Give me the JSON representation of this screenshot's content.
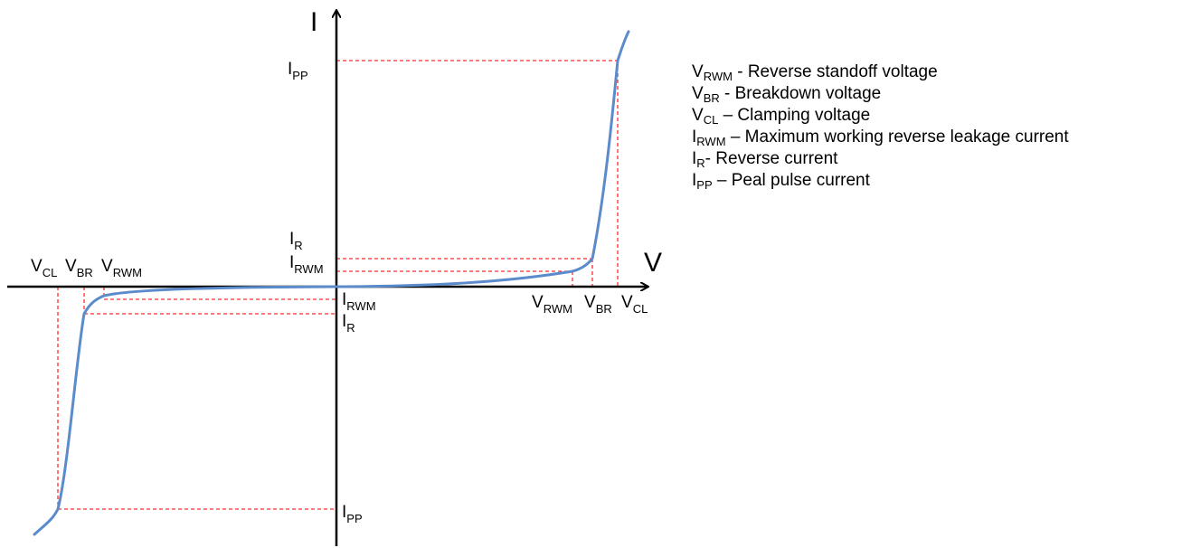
{
  "colors": {
    "axis": "#000000",
    "curve": "#5B8BCB",
    "guide": "#FF2A2A",
    "background": "#FFFFFF"
  },
  "axes": {
    "y_name": "I",
    "x_name": "V"
  },
  "labels": {
    "ipp_top": {
      "base": "I",
      "sub": "PP"
    },
    "ir_top": {
      "base": "I",
      "sub": "R"
    },
    "irwm_top": {
      "base": "I",
      "sub": "RWM"
    },
    "irwm_bot": {
      "base": "I",
      "sub": "RWM"
    },
    "ir_bot": {
      "base": "I",
      "sub": "R"
    },
    "ipp_bot": {
      "base": "I",
      "sub": "PP"
    },
    "vcl_left": {
      "base": "V",
      "sub": "CL"
    },
    "vbr_left": {
      "base": "V",
      "sub": "BR"
    },
    "vrwm_left": {
      "base": "V",
      "sub": "RWM"
    },
    "vrwm_right": {
      "base": "V",
      "sub": "RWM"
    },
    "vbr_right": {
      "base": "V",
      "sub": "BR"
    },
    "vcl_right": {
      "base": "V",
      "sub": "CL"
    }
  },
  "legend": [
    {
      "base": "V",
      "sub": "RWM",
      "text": " - Reverse standoff voltage"
    },
    {
      "base": "V",
      "sub": "BR",
      "text": " - Breakdown voltage"
    },
    {
      "base": "V",
      "sub": "CL",
      "text": " – Clamping voltage"
    },
    {
      "base": "I",
      "sub": "RWM",
      "text": " – Maximum working reverse leakage current"
    },
    {
      "base": "I",
      "sub": "R",
      "text": "- Reverse current"
    },
    {
      "base": "I",
      "sub": "PP",
      "text": " – Peal pulse current"
    }
  ]
}
